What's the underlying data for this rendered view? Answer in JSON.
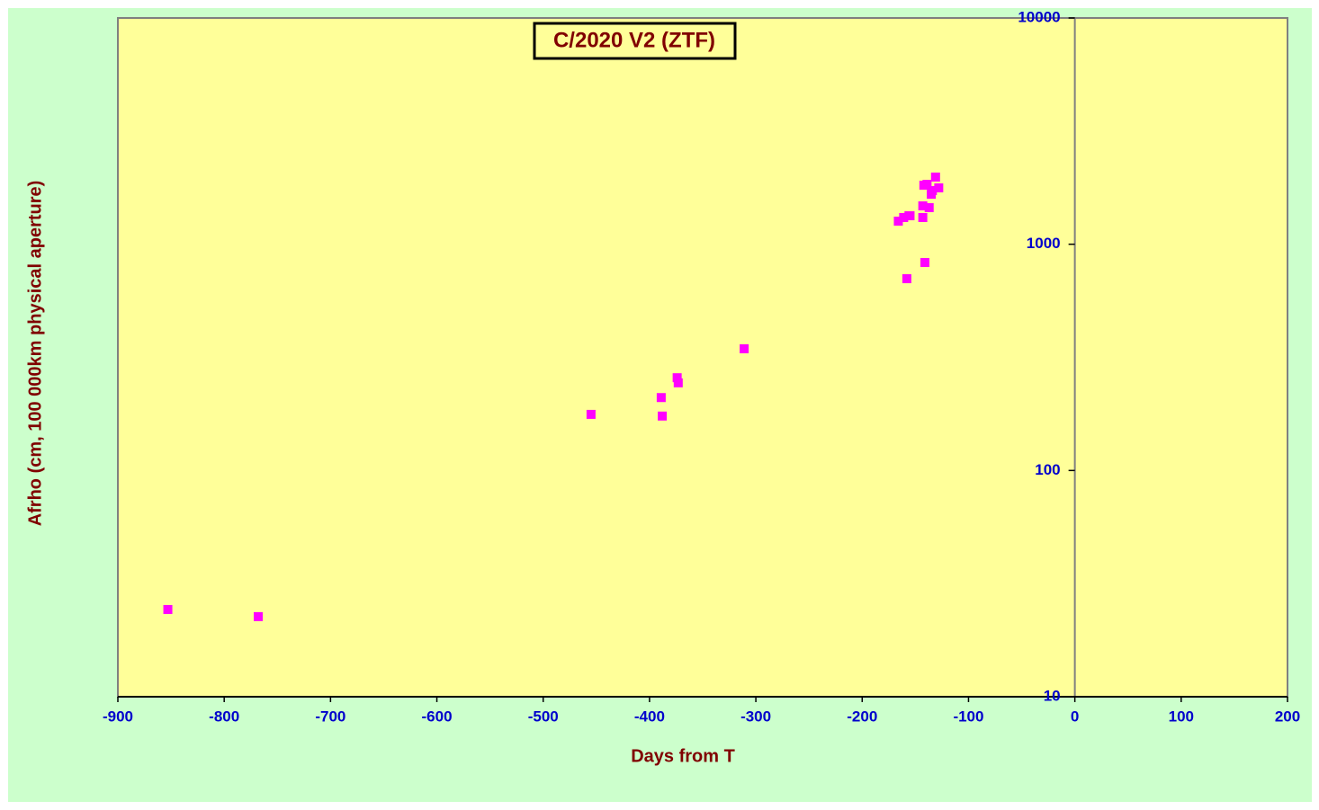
{
  "chart_data": {
    "type": "scatter",
    "title": "C/2020 V2 (ZTF)",
    "x_label": "Days from  T",
    "y_label": "Afrho (cm, 100 000km physical aperture)",
    "x": [
      -853,
      -768,
      -455,
      -389,
      -388,
      -374,
      -373,
      -311,
      -166,
      -161,
      -158,
      -156,
      -155,
      -143,
      -143,
      -142,
      -141,
      -139,
      -137,
      -135,
      -134,
      -131,
      -128
    ],
    "series": [
      {
        "color": "#ff00ff",
        "values": [
          24.3,
          22.6,
          177,
          210,
          174,
          257,
          244,
          345,
          1265,
          1312,
          704,
          1336,
          1336,
          1312,
          1478,
          1824,
          830,
          1840,
          1451,
          1663,
          1726,
          1981,
          1775
        ]
      }
    ],
    "xlim": [
      -900,
      200
    ],
    "xticks": [
      -900,
      -800,
      -700,
      -600,
      -500,
      -400,
      -300,
      -200,
      -100,
      0,
      100,
      200
    ],
    "ylim": [
      10,
      10000
    ],
    "yticks": [
      10,
      100,
      1000,
      10000
    ],
    "y_scale": "log",
    "y_axis_at": 0
  }
}
